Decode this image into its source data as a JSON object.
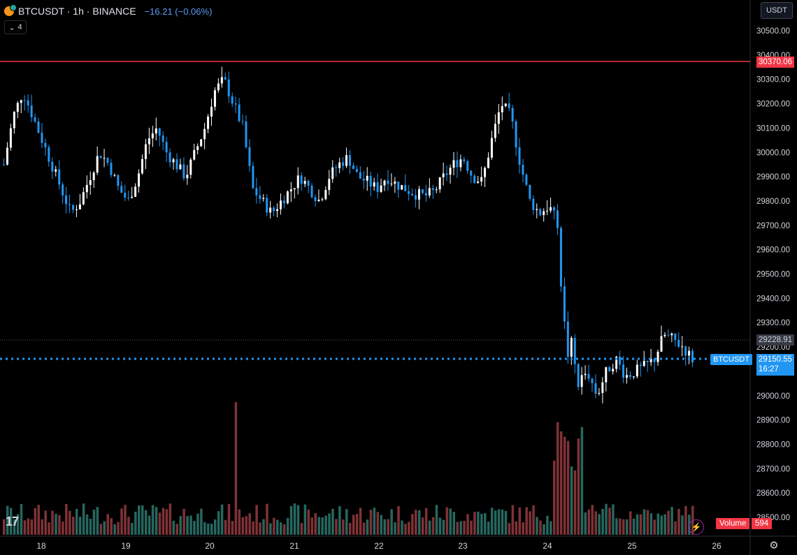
{
  "header": {
    "symbol": "BTCUSDT · 1h · BINANCE",
    "change": "−16.21 (−0.06%)",
    "indicators_count": "4",
    "currency": "USDT"
  },
  "price_axis": {
    "labels": [
      "30500.00",
      "30400.00",
      "30300.00",
      "30200.00",
      "30100.00",
      "30000.00",
      "29900.00",
      "29800.00",
      "29700.00",
      "29600.00",
      "29500.00",
      "29400.00",
      "29300.00",
      "29200.00",
      "29100.00",
      "29000.00",
      "28900.00",
      "28800.00",
      "28700.00",
      "28600.00",
      "28500.00"
    ],
    "values": [
      30500,
      30400,
      30300,
      30200,
      30100,
      30000,
      29900,
      29800,
      29700,
      29600,
      29500,
      29400,
      29300,
      29200,
      29100,
      29000,
      28900,
      28800,
      28700,
      28600,
      28500
    ]
  },
  "time_axis": {
    "labels": [
      "18",
      "19",
      "20",
      "21",
      "22",
      "23",
      "24",
      "25",
      "26"
    ]
  },
  "tags": {
    "resistance": "30370.06",
    "crosshair_price": "29228.91",
    "last_price": "29150.55",
    "countdown": "16:27",
    "symbol_label": "BTCUSDT",
    "volume_label": "Volume",
    "volume_value": "594"
  },
  "colors": {
    "up": "#ffffff",
    "down": "#2196f3",
    "vol_up": "#26675f",
    "vol_down": "#7f3236",
    "resistance": "#f23645",
    "last": "#2196f3"
  },
  "icons": {
    "coin": "bitcoin-icon",
    "logo": "tradingview-logo",
    "flash": "lightning-icon",
    "settings": "gear-icon"
  },
  "chart_data": {
    "type": "candlestick",
    "title": "BTCUSDT · 1h · BINANCE",
    "x_labels": [
      "18",
      "19",
      "20",
      "21",
      "22",
      "23",
      "24",
      "25",
      "26"
    ],
    "ylim": [
      28500,
      30550
    ],
    "resistance": 30370.06,
    "last": 29150.55,
    "closes_hourly_approx": [
      29950,
      30150,
      30250,
      30150,
      30050,
      29950,
      29850,
      29750,
      29800,
      29900,
      30000,
      29950,
      29850,
      29800,
      29900,
      30050,
      30100,
      30000,
      29950,
      29900,
      30000,
      30100,
      30250,
      30300,
      30200,
      30100,
      29850,
      29800,
      29750,
      29800,
      29850,
      29900,
      29850,
      29800,
      29900,
      29950,
      29980,
      29900,
      29880,
      29850,
      29900,
      29870,
      29850,
      29830,
      29820,
      29840,
      29900,
      29950,
      29980,
      29900,
      29880,
      30050,
      30200,
      30150,
      29950,
      29800,
      29750,
      29780,
      29700,
      29300,
      29050,
      29100,
      29000,
      29100,
      29150,
      29080,
      29100,
      29120,
      29150,
      29250,
      29230,
      29200,
      29150
    ]
  }
}
